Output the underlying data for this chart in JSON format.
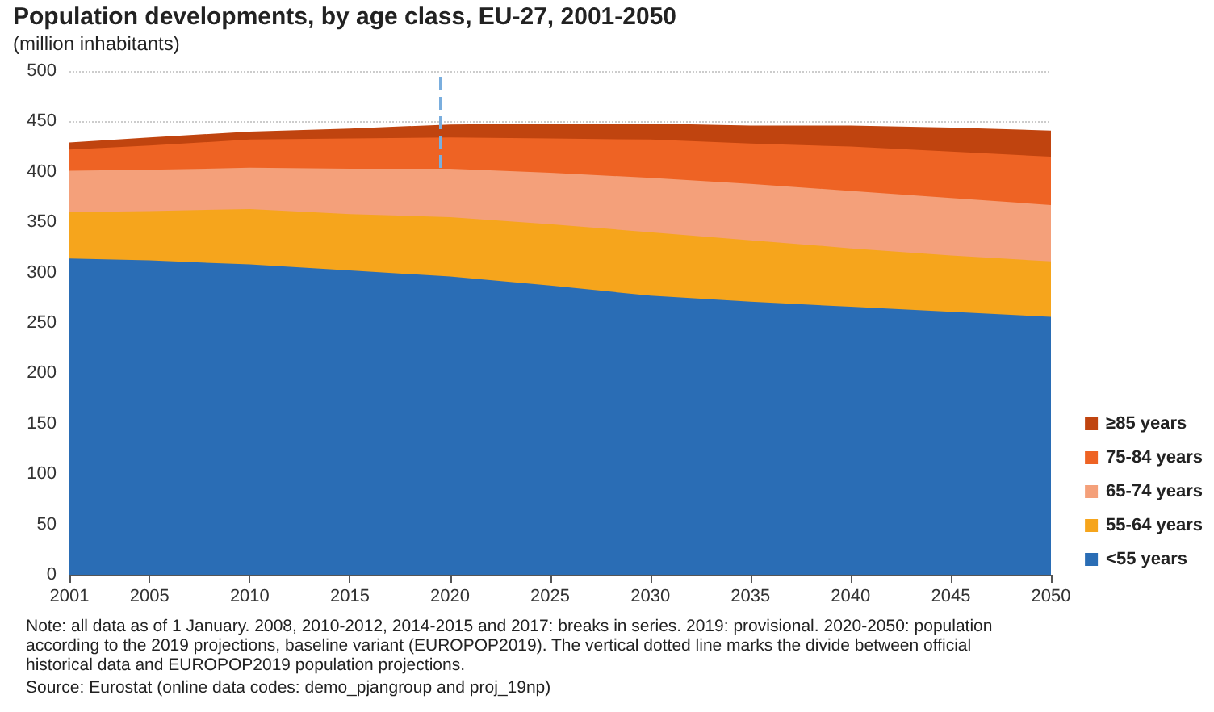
{
  "chart_data": {
    "type": "area",
    "title": "Population developments, by age class, EU-27, 2001-2050",
    "subtitle": "(million inhabitants)",
    "x": [
      2001,
      2005,
      2010,
      2015,
      2020,
      2025,
      2030,
      2035,
      2040,
      2045,
      2050
    ],
    "stacked": true,
    "series": [
      {
        "name": "<55 years",
        "color": "#2a6db5",
        "values": [
          314,
          312,
          308,
          302,
          296,
          287,
          277,
          271,
          266,
          261,
          256
        ]
      },
      {
        "name": "55-64 years",
        "color": "#f6a51c",
        "values": [
          46,
          49,
          55,
          56,
          59,
          61,
          63,
          61,
          58,
          56,
          55
        ]
      },
      {
        "name": "65-74 years",
        "color": "#f4a07a",
        "values": [
          41,
          41,
          41,
          45,
          48,
          51,
          54,
          56,
          57,
          57,
          56
        ]
      },
      {
        "name": "75-84 years",
        "color": "#ee6324",
        "values": [
          21,
          24,
          28,
          30,
          31,
          34,
          38,
          40,
          44,
          46,
          48
        ]
      },
      {
        "name": "≥85 years",
        "color": "#c0440f",
        "values": [
          7,
          8,
          8,
          10,
          13,
          15,
          16,
          18,
          21,
          24,
          26
        ]
      }
    ],
    "xlim": [
      2001,
      2050
    ],
    "xticks": [
      2001,
      2005,
      2010,
      2015,
      2020,
      2025,
      2030,
      2035,
      2040,
      2045,
      2050
    ],
    "ylim": [
      0,
      500
    ],
    "yticks": [
      0,
      50,
      100,
      150,
      200,
      250,
      300,
      350,
      400,
      450,
      500
    ],
    "grid": "y",
    "legend": "bottom right",
    "ref_lines": [
      {
        "axis": "x",
        "value": 2019.5,
        "label": null,
        "color": "#7aaede",
        "line_style": "dashed"
      }
    ],
    "annotations": [
      "Note: all data as of 1 January.  2008, 2010-2012, 2014-2015 and 2017: breaks in series. 2019: provisional. 2020-2050: population according to the 2019 projections, baseline variant (EUROPOP2019). The vertical dotted line marks the divide between official historical data and EUROPOP2019 population projections.",
      "Source: Eurostat (online data codes: demo_pjangroup and proj_19np)"
    ]
  }
}
